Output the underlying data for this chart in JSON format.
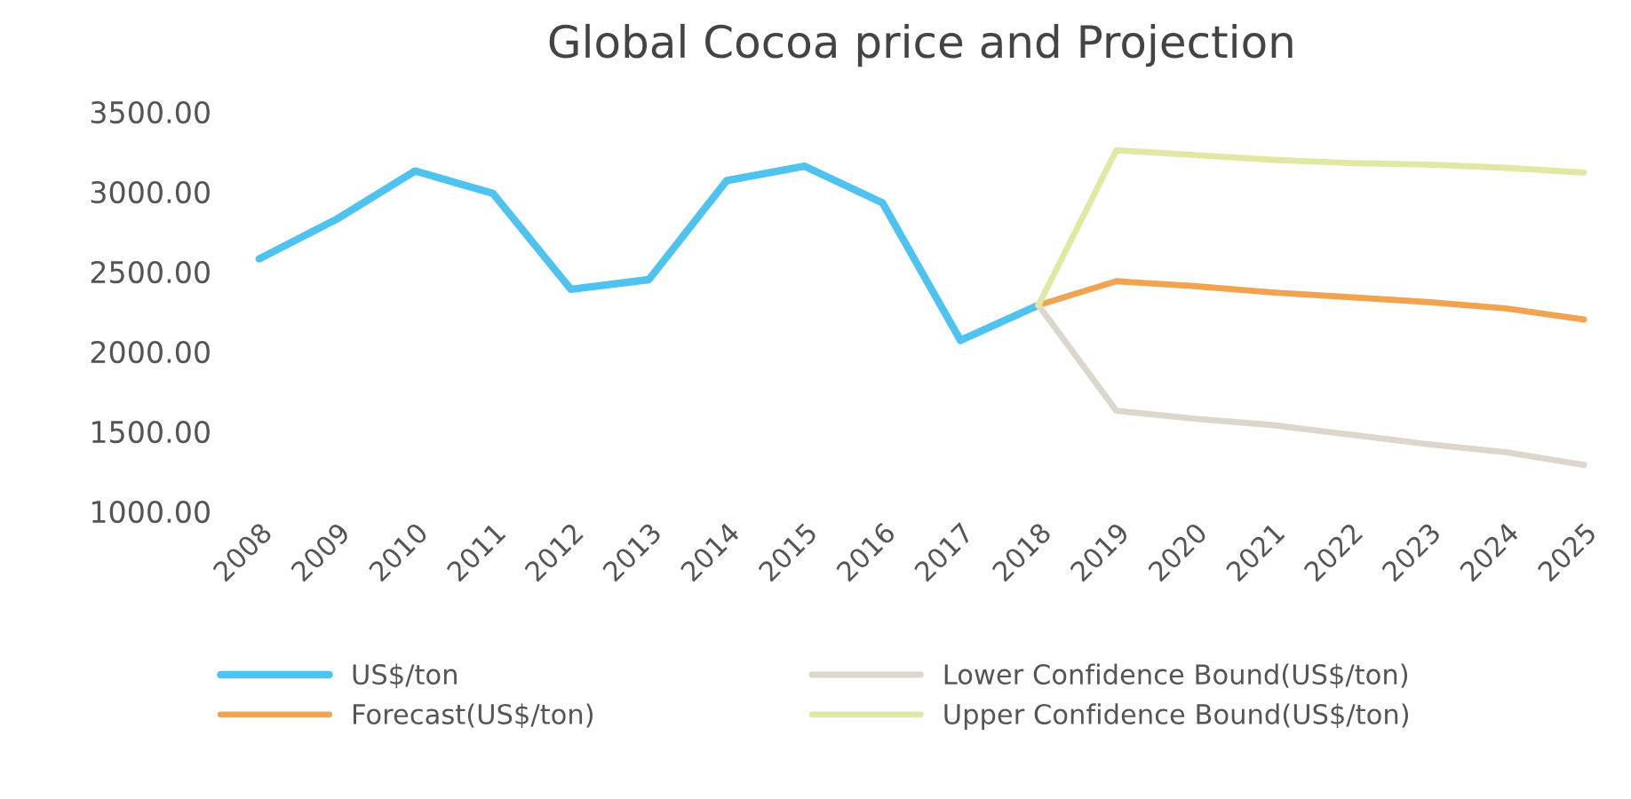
{
  "chart_data": {
    "type": "line",
    "title": "Global Cocoa price and Projection",
    "categories": [
      "2008",
      "2009",
      "2010",
      "2011",
      "2012",
      "2013",
      "2014",
      "2015",
      "2016",
      "2017",
      "2018",
      "2019",
      "2020",
      "2021",
      "2022",
      "2023",
      "2024",
      "2025"
    ],
    "series": [
      {
        "name": "US$/ton",
        "color": "#4fc3ef",
        "values": [
          2580,
          2830,
          3130,
          2990,
          2390,
          2450,
          3070,
          3160,
          2930,
          2070,
          2290,
          null,
          null,
          null,
          null,
          null,
          null,
          null
        ]
      },
      {
        "name": "Forecast(US$/ton)",
        "color": "#f0a450",
        "values": [
          null,
          null,
          null,
          null,
          null,
          null,
          null,
          null,
          null,
          null,
          2290,
          2440,
          2410,
          2370,
          2340,
          2310,
          2270,
          2200
        ]
      },
      {
        "name": "Lower Confidence Bound(US$/ton)",
        "color": "#dcd6cc",
        "values": [
          null,
          null,
          null,
          null,
          null,
          null,
          null,
          null,
          null,
          null,
          2290,
          1630,
          1580,
          1540,
          1480,
          1420,
          1370,
          1290
        ]
      },
      {
        "name": "Upper Confidence Bound(US$/ton)",
        "color": "#e2e8a4",
        "values": [
          null,
          null,
          null,
          null,
          null,
          null,
          null,
          null,
          null,
          null,
          2290,
          3260,
          3230,
          3200,
          3180,
          3170,
          3150,
          3120
        ]
      }
    ],
    "ylim": [
      1000,
      3500
    ],
    "yticks": [
      {
        "value": 1000,
        "label": "1000.00"
      },
      {
        "value": 1500,
        "label": "1500.00"
      },
      {
        "value": 2000,
        "label": "2000.00"
      },
      {
        "value": 2500,
        "label": "2500.00"
      },
      {
        "value": 3000,
        "label": "3000.00"
      },
      {
        "value": 3500,
        "label": "3500.00"
      }
    ],
    "grid": false,
    "legend": "bottom",
    "marker": "none",
    "line_style": "solid"
  }
}
